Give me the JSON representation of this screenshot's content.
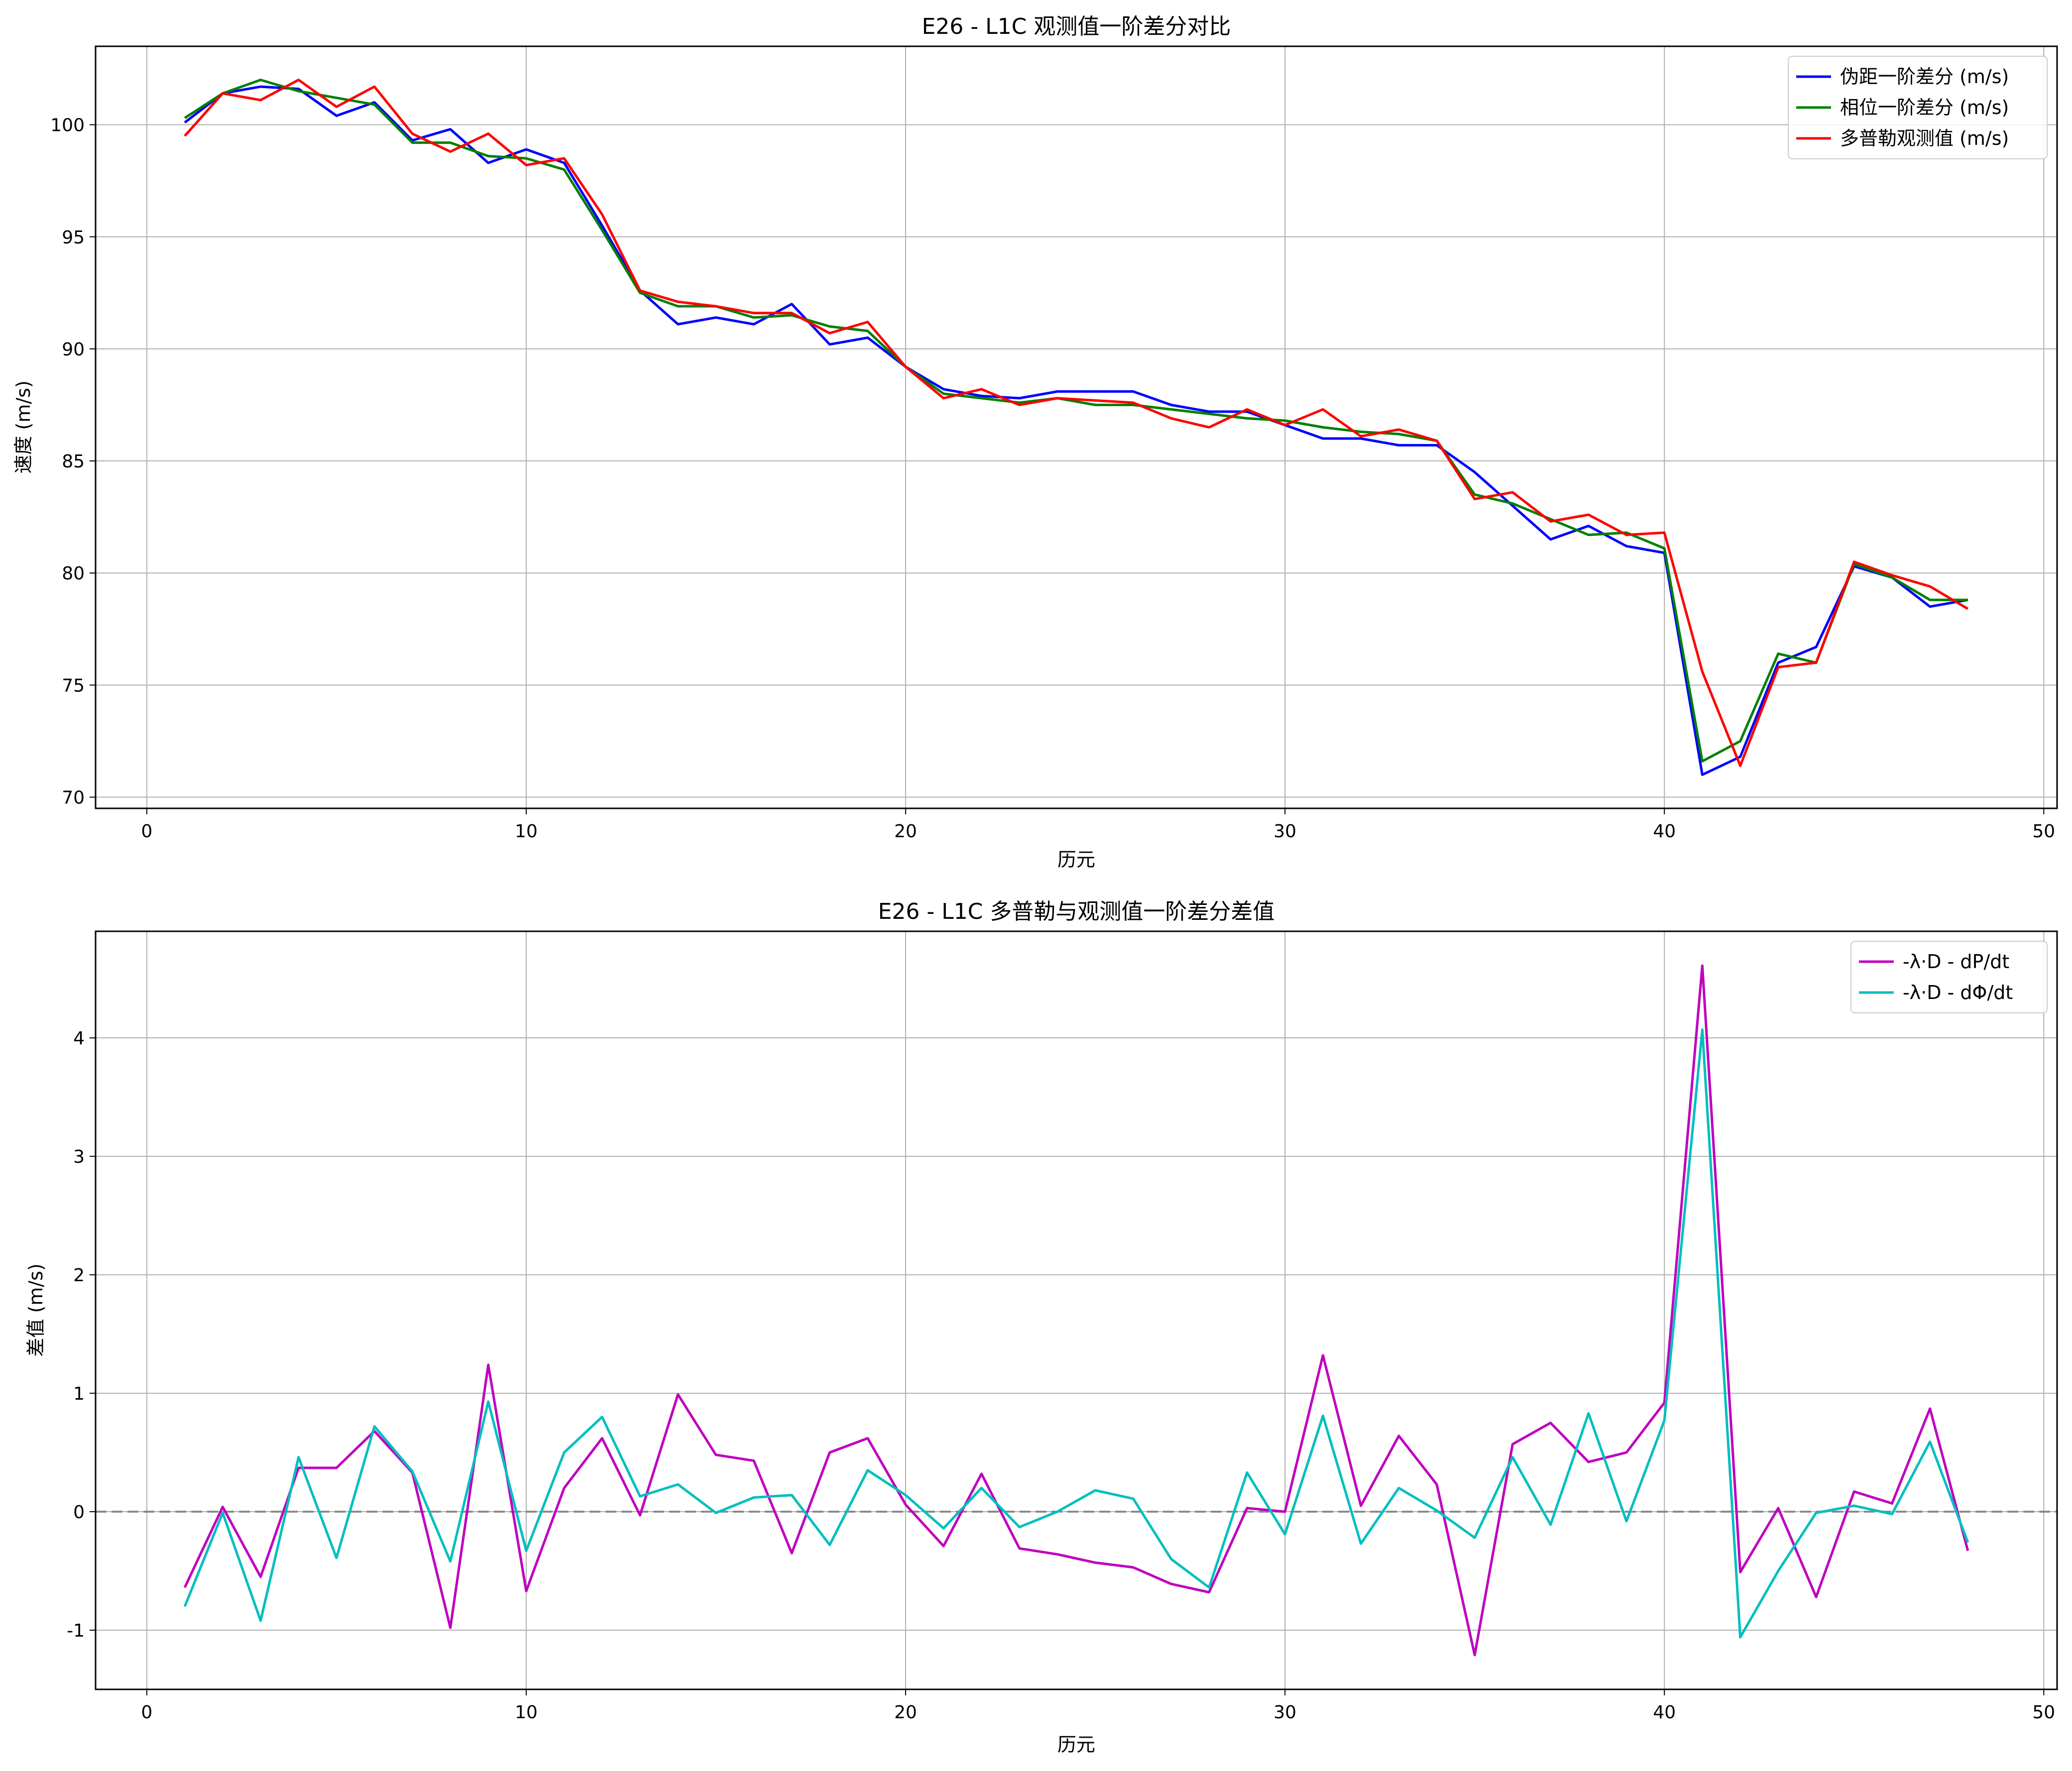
{
  "chart_data": [
    {
      "type": "line",
      "title": "E26 - L1C 观测值一阶差分对比",
      "xlabel": "历元",
      "ylabel": "速度 (m/s)",
      "xlim": [
        -1.35,
        50.35
      ],
      "ylim": [
        69.5,
        103.5
      ],
      "xticks": [
        0,
        10,
        20,
        30,
        40,
        50
      ],
      "yticks": [
        70,
        75,
        80,
        85,
        90,
        95,
        100
      ],
      "grid": true,
      "legend_position": "top-right",
      "x": [
        1,
        2,
        3,
        4,
        5,
        6,
        7,
        8,
        9,
        10,
        11,
        12,
        13,
        14,
        15,
        16,
        17,
        18,
        19,
        20,
        21,
        22,
        23,
        24,
        25,
        26,
        27,
        28,
        29,
        30,
        31,
        32,
        33,
        34,
        35,
        36,
        37,
        38,
        39,
        40,
        41,
        42,
        43,
        44,
        45,
        46,
        47,
        48
      ],
      "series": [
        {
          "name": "伪距一阶差分 (m/s)",
          "color": "#0000ff",
          "values": [
            100.1,
            101.4,
            101.7,
            101.6,
            100.4,
            101.0,
            99.3,
            99.8,
            98.3,
            98.9,
            98.3,
            95.5,
            92.6,
            91.1,
            91.4,
            91.1,
            92.0,
            90.2,
            90.5,
            89.2,
            88.2,
            87.9,
            87.8,
            88.1,
            88.1,
            88.1,
            87.5,
            87.2,
            87.2,
            86.6,
            86.0,
            86.0,
            85.7,
            85.7,
            84.5,
            83.0,
            81.5,
            82.1,
            81.2,
            80.9,
            71.0,
            71.8,
            76.0,
            76.7,
            80.3,
            79.8,
            78.5,
            78.8
          ]
        },
        {
          "name": "相位一阶差分 (m/s)",
          "color": "#008000",
          "values": [
            100.3,
            101.4,
            102.0,
            101.5,
            101.2,
            100.9,
            99.2,
            99.2,
            98.6,
            98.5,
            98.0,
            95.3,
            92.5,
            91.9,
            91.9,
            91.4,
            91.5,
            91.0,
            90.8,
            89.2,
            88.0,
            87.8,
            87.6,
            87.8,
            87.5,
            87.5,
            87.3,
            87.1,
            86.9,
            86.8,
            86.5,
            86.3,
            86.2,
            85.9,
            83.5,
            83.1,
            82.4,
            81.7,
            81.8,
            81.1,
            71.6,
            72.5,
            76.4,
            76.0,
            80.4,
            79.8,
            78.8,
            78.8
          ]
        },
        {
          "name": "多普勒观测值 (m/s)",
          "color": "#ff0000",
          "values": [
            99.5,
            101.4,
            101.1,
            102.0,
            100.8,
            101.7,
            99.6,
            98.8,
            99.6,
            98.2,
            98.5,
            96.0,
            92.6,
            92.1,
            91.9,
            91.6,
            91.6,
            90.7,
            91.2,
            89.2,
            87.8,
            88.2,
            87.5,
            87.8,
            87.7,
            87.6,
            86.9,
            86.5,
            87.3,
            86.6,
            87.3,
            86.1,
            86.4,
            85.9,
            83.3,
            83.6,
            82.3,
            82.6,
            81.7,
            81.8,
            75.6,
            71.4,
            75.8,
            76.0,
            80.5,
            79.9,
            79.4,
            78.4
          ]
        }
      ]
    },
    {
      "type": "line",
      "title": "E26 - L1C 多普勒与观测值一阶差分差值",
      "xlabel": "历元",
      "ylabel": "差值 (m/s)",
      "xlim": [
        -1.35,
        50.35
      ],
      "ylim": [
        -1.5,
        4.9
      ],
      "xticks": [
        0,
        10,
        20,
        30,
        40,
        50
      ],
      "yticks": [
        -1,
        0,
        1,
        2,
        3,
        4
      ],
      "grid": true,
      "reference_line": {
        "y": 0,
        "style": "dashed",
        "color": "#808080"
      },
      "legend_position": "top-right",
      "x": [
        1,
        2,
        3,
        4,
        5,
        6,
        7,
        8,
        9,
        10,
        11,
        12,
        13,
        14,
        15,
        16,
        17,
        18,
        19,
        20,
        21,
        22,
        23,
        24,
        25,
        26,
        27,
        28,
        29,
        30,
        31,
        32,
        33,
        34,
        35,
        36,
        37,
        38,
        39,
        40,
        41,
        42,
        43,
        44,
        45,
        46,
        47,
        48
      ],
      "series": [
        {
          "name": "-λ·D - dP/dt",
          "color": "#bf00bf",
          "values": [
            -0.64,
            0.04,
            -0.55,
            0.37,
            0.37,
            0.68,
            0.33,
            -0.98,
            1.24,
            -0.67,
            0.2,
            0.62,
            -0.03,
            0.99,
            0.48,
            0.43,
            -0.35,
            0.5,
            0.62,
            0.06,
            -0.29,
            0.32,
            -0.31,
            -0.36,
            -0.43,
            -0.47,
            -0.61,
            -0.68,
            0.03,
            0.0,
            1.32,
            0.05,
            0.64,
            0.23,
            -1.21,
            0.57,
            0.75,
            0.42,
            0.5,
            0.92,
            4.61,
            -0.51,
            0.03,
            -0.72,
            0.17,
            0.07,
            0.87,
            -0.33
          ]
        },
        {
          "name": "-λ·D - dΦ/dt",
          "color": "#00bfbf",
          "values": [
            -0.8,
            -0.01,
            -0.92,
            0.46,
            -0.39,
            0.72,
            0.34,
            -0.42,
            0.93,
            -0.33,
            0.5,
            0.8,
            0.13,
            0.23,
            -0.01,
            0.12,
            0.14,
            -0.28,
            0.35,
            0.14,
            -0.14,
            0.2,
            -0.13,
            0.0,
            0.18,
            0.11,
            -0.4,
            -0.64,
            0.33,
            -0.19,
            0.81,
            -0.27,
            0.2,
            0.01,
            -0.22,
            0.46,
            -0.11,
            0.83,
            -0.08,
            0.77,
            4.07,
            -1.06,
            -0.5,
            -0.01,
            0.05,
            -0.02,
            0.59,
            -0.26
          ]
        }
      ]
    }
  ]
}
